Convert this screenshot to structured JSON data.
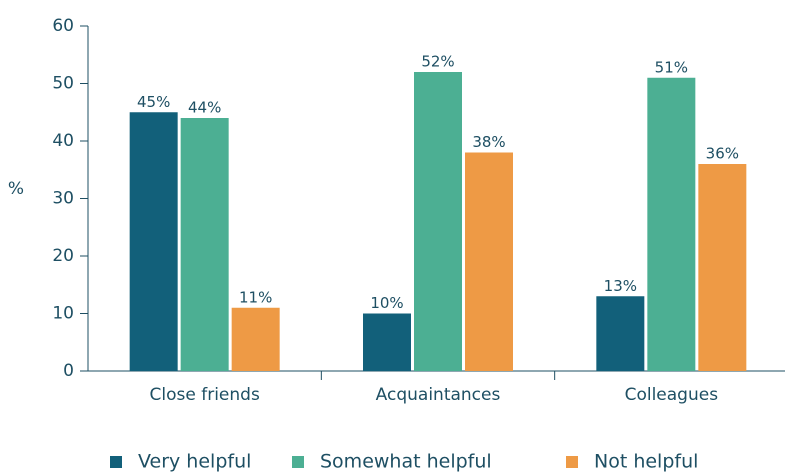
{
  "chart_data": {
    "type": "bar",
    "y_label": "%",
    "categories": [
      "Close friends",
      "Acquaintances",
      "Colleagues"
    ],
    "series": [
      {
        "name": "Very helpful",
        "color": "#12607a",
        "values": [
          45,
          10,
          13
        ],
        "value_labels": [
          "45%",
          "10%",
          "13%"
        ]
      },
      {
        "name": "Somewhat helpful",
        "color": "#4caf93",
        "values": [
          44,
          52,
          51
        ],
        "value_labels": [
          "44%",
          "52%",
          "51%"
        ]
      },
      {
        "name": "Not helpful",
        "color": "#ee9a45",
        "values": [
          11,
          38,
          36
        ],
        "value_labels": [
          "11%",
          "38%",
          "36%"
        ]
      }
    ],
    "ylim": [
      0,
      60
    ],
    "yticks": [
      0,
      10,
      20,
      30,
      40,
      50,
      60
    ]
  }
}
